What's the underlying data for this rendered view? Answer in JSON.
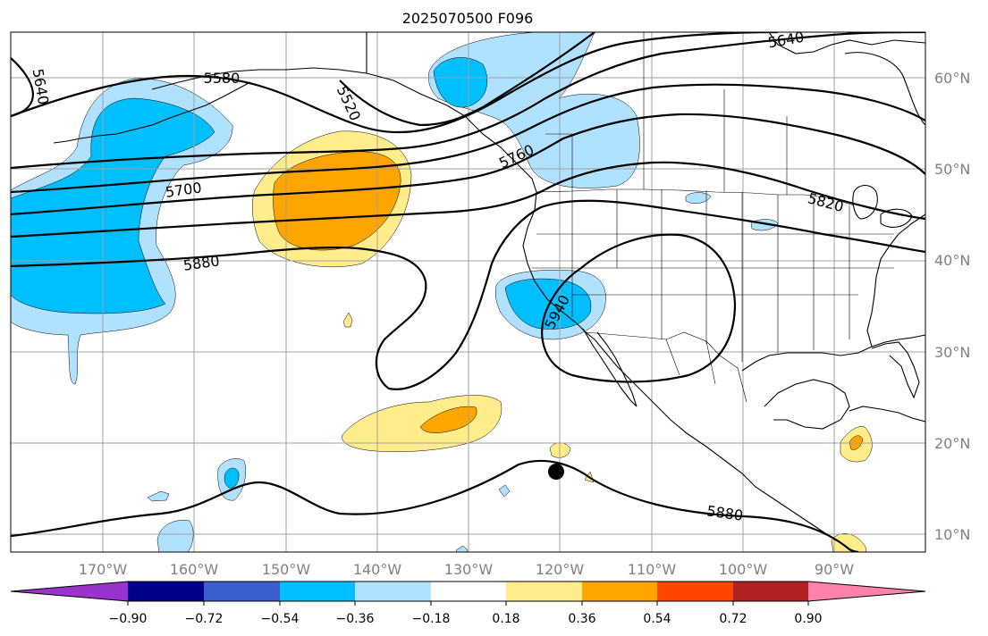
{
  "title": "2025070500 F096",
  "colors": {
    "neg_090_plus": "#9a32cd",
    "neg_072_090": "#00008b",
    "neg_054_072": "#3a5fcd",
    "neg_036_054": "#00bfff",
    "neg_018_036": "#b0e2ff",
    "neutral": "#ffffff",
    "pos_018_036": "#ffec8b",
    "pos_036_054": "#ffa500",
    "pos_054_072": "#ff4500",
    "pos_072_090": "#b22222",
    "pos_090_plus": "#ff82ab"
  },
  "map": {
    "region": "North-East Pacific and North America",
    "lon_labels": [
      "170°W",
      "160°W",
      "150°W",
      "140°W",
      "130°W",
      "120°W",
      "110°W",
      "100°W",
      "90°W"
    ],
    "lat_labels": [
      "60°N",
      "50°N",
      "40°N",
      "30°N",
      "20°N",
      "10°N"
    ],
    "contour_labels": [
      "5640",
      "5580",
      "5520",
      "5640",
      "5700",
      "5760",
      "5820",
      "5880",
      "5940",
      "5880"
    ],
    "marker": "filled-circle"
  },
  "colorbar": {
    "tick_labels": [
      "−0.90",
      "−0.72",
      "−0.54",
      "−0.36",
      "−0.18",
      "0.18",
      "0.36",
      "0.54",
      "0.72",
      "0.90"
    ],
    "extend": "both"
  }
}
